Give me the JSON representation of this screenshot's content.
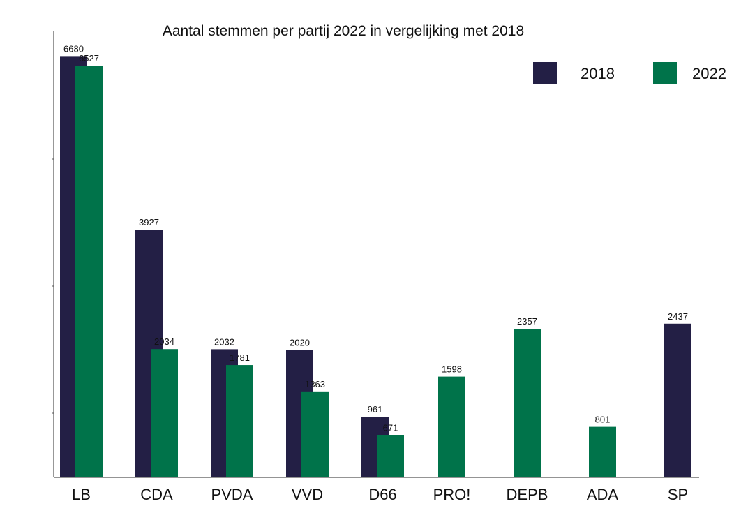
{
  "chart_data": {
    "type": "bar",
    "title": "Aantal stemmen per partij 2022 in vergelijking met 2018",
    "xlabel": "",
    "ylabel": "",
    "ylim": [
      0,
      6900
    ],
    "categories": [
      "LB",
      "CDA",
      "PVDA",
      "VVD",
      "D66",
      "PRO!",
      "DEPB",
      "ADA",
      "SP"
    ],
    "series": [
      {
        "name": "2018",
        "color": "#231f45",
        "values": [
          6680,
          3927,
          2032,
          2020,
          961,
          null,
          null,
          null,
          2437
        ]
      },
      {
        "name": "2022",
        "color": "#00734a",
        "values": [
          6527,
          2034,
          1781,
          1363,
          671,
          1598,
          2357,
          801,
          null
        ]
      }
    ],
    "legend": "top-right",
    "grid": false
  }
}
